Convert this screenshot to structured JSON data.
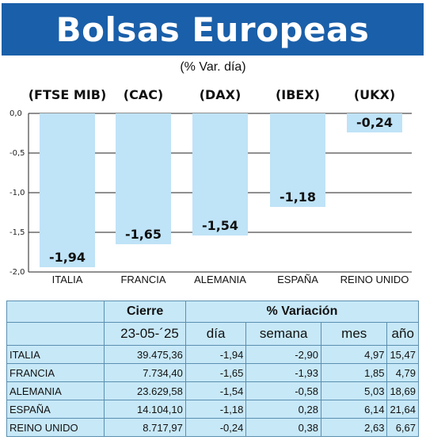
{
  "title": "Bolsas Europeas",
  "subtitle": "(% Var. día)",
  "colors": {
    "title_bg": "#1a5fa9",
    "bar": "#bfe3f7",
    "table_bg": "#c7e8f7"
  },
  "chart_data": {
    "type": "bar",
    "categories": [
      "ITALIA",
      "FRANCIA",
      "ALEMANIA",
      "ESPAÑA",
      "REINO UNIDO"
    ],
    "indices": [
      "(FTSE MIB)",
      "(CAC)",
      "(DAX)",
      "(IBEX)",
      "(UKX)"
    ],
    "values": [
      -1.94,
      -1.65,
      -1.54,
      -1.18,
      -0.24
    ],
    "value_labels": [
      "-1,94",
      "-1,65",
      "-1,54",
      "-1,18",
      "-0,24"
    ],
    "yticks": [
      0.0,
      -0.5,
      -1.0,
      -1.5,
      -2.0
    ],
    "ytick_labels": [
      "0,0",
      "-0,5",
      "-1,0",
      "-1,5",
      "-2,0"
    ],
    "ylim": [
      -2.0,
      0.0
    ],
    "grid": true
  },
  "table": {
    "header_cierre": "Cierre",
    "header_variacion": "% Variación",
    "date": "23-05-´25",
    "col_dia": "día",
    "col_semana": "semana",
    "col_mes": "mes",
    "col_ano": "año",
    "rows": [
      {
        "name": "ITALIA",
        "cierre": "39.475,36",
        "dia": "-1,94",
        "semana": "-2,90",
        "mes": "4,97",
        "ano": "15,47"
      },
      {
        "name": "FRANCIA",
        "cierre": "7.734,40",
        "dia": "-1,65",
        "semana": "-1,93",
        "mes": "1,85",
        "ano": "4,79"
      },
      {
        "name": "ALEMANIA",
        "cierre": "23.629,58",
        "dia": "-1,54",
        "semana": "-0,58",
        "mes": "5,03",
        "ano": "18,69"
      },
      {
        "name": "ESPAÑA",
        "cierre": "14.104,10",
        "dia": "-1,18",
        "semana": "0,28",
        "mes": "6,14",
        "ano": "21,64"
      },
      {
        "name": "REINO UNIDO",
        "cierre": "8.717,97",
        "dia": "-0,24",
        "semana": "0,38",
        "mes": "2,63",
        "ano": "6,67"
      }
    ]
  }
}
